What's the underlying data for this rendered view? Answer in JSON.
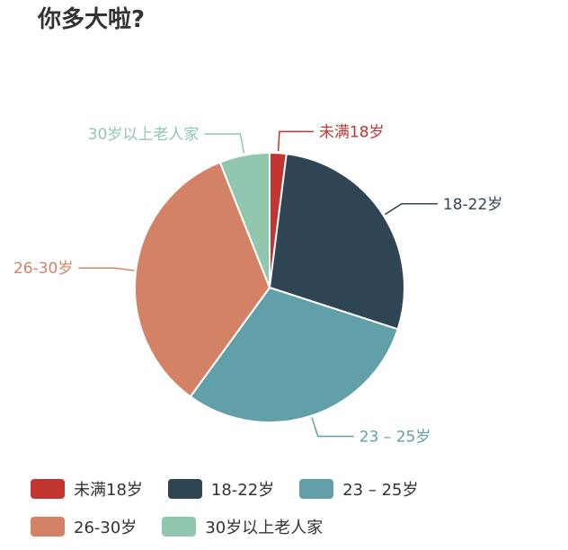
{
  "title": "你多大啦?",
  "chart_data": {
    "type": "pie",
    "categories": [
      "未满18岁",
      "18-22岁",
      "23 – 25岁",
      "26-30岁",
      "30岁以上老人家"
    ],
    "values": [
      2,
      28,
      30,
      34,
      6
    ],
    "colors": [
      "#c23531",
      "#2f4554",
      "#61a0a8",
      "#d48265",
      "#91c7ae"
    ],
    "legend_position": "bottom",
    "start_angle": "top, clockwise"
  }
}
